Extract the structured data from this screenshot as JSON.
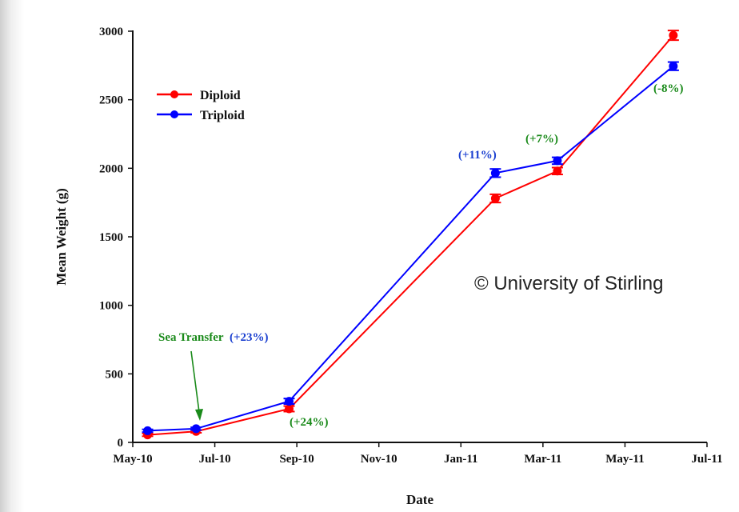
{
  "chart_data": {
    "type": "line",
    "title": "",
    "xlabel": "Date",
    "ylabel": "Mean Weight (g)",
    "x_ticks": [
      "May-10",
      "Jul-10",
      "Sep-10",
      "Nov-10",
      "Jan-11",
      "Mar-11",
      "May-11",
      "Jul-11"
    ],
    "y_ticks": [
      "0",
      "500",
      "1000",
      "1500",
      "2000",
      "2500",
      "3000"
    ],
    "xlim": [
      "2010-05-01",
      "2011-07-01"
    ],
    "ylim": [
      0,
      3000
    ],
    "legend_position": "top-left",
    "grid": false,
    "series": [
      {
        "name": "Diploid",
        "color": "#ff0000",
        "x": [
          "2010-05-12",
          "2010-06-17",
          "2010-08-25",
          "2011-01-25",
          "2011-03-12",
          "2011-06-06"
        ],
        "y": [
          55,
          80,
          245,
          1780,
          1980,
          2970
        ],
        "error": [
          10,
          10,
          20,
          30,
          25,
          35
        ]
      },
      {
        "name": "Triploid",
        "color": "#0000ff",
        "x": [
          "2010-05-12",
          "2010-06-17",
          "2010-08-25",
          "2011-01-25",
          "2011-03-12",
          "2011-06-06"
        ],
        "y": [
          85,
          100,
          300,
          1965,
          2055,
          2745
        ],
        "error": [
          10,
          10,
          20,
          30,
          25,
          30
        ]
      }
    ],
    "annotations": [
      {
        "id": "sea",
        "label": "Sea Transfer",
        "pct": "(+23%)",
        "label_color": "#1a8a1a",
        "pct_color": "#1a3fd0"
      },
      {
        "id": "a24",
        "text": "(+24%)",
        "color": "#1a8a1a"
      },
      {
        "id": "a11",
        "text": "(+11%)",
        "color": "#1a3fd0"
      },
      {
        "id": "a7",
        "text": "(+7%)",
        "color": "#1a8a1a"
      },
      {
        "id": "a8",
        "text": "(-8%)",
        "color": "#1a8a1a"
      }
    ]
  },
  "watermark": "© University of Stirling"
}
